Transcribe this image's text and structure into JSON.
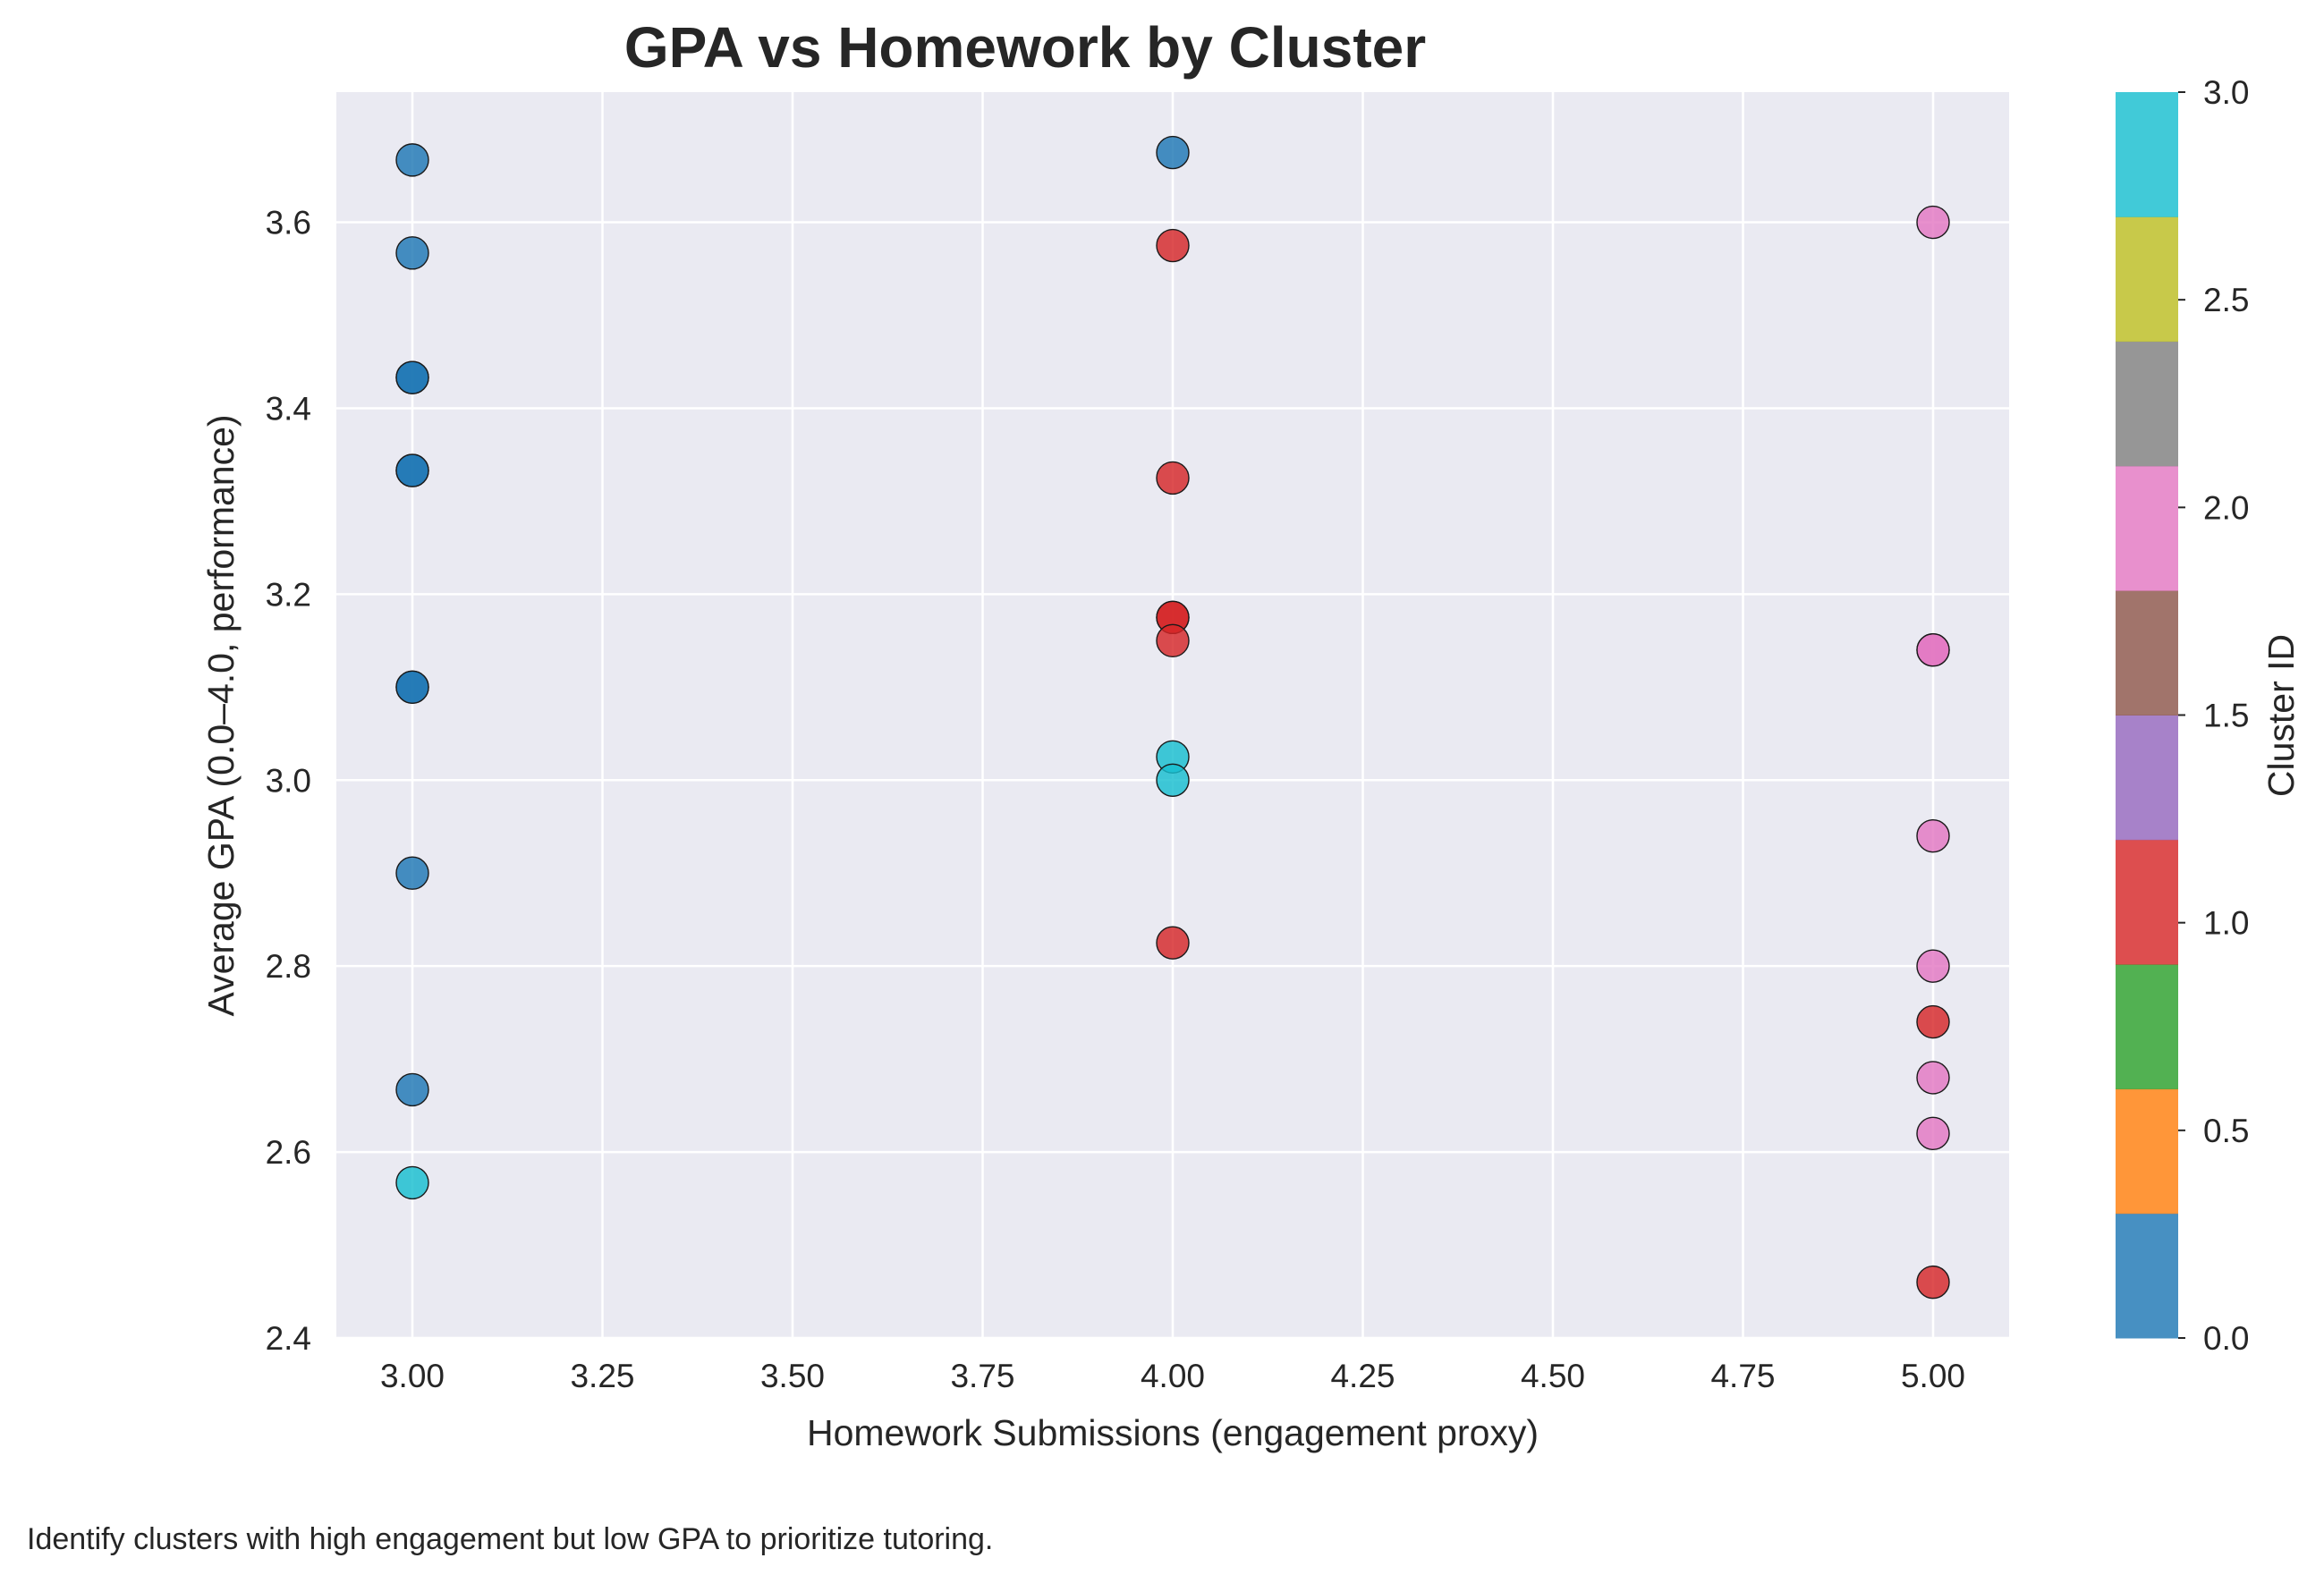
{
  "chart_data": {
    "type": "scatter",
    "title": "GPA vs Homework by Cluster",
    "xlabel": "Homework Submissions (engagement proxy)",
    "ylabel": "Average GPA (0.0–4.0, performance)",
    "xlim": [
      2.9,
      5.1
    ],
    "ylim": [
      2.4,
      3.74
    ],
    "xticks": [
      "3.00",
      "3.25",
      "3.50",
      "3.75",
      "4.00",
      "4.25",
      "4.50",
      "4.75",
      "5.00"
    ],
    "yticks": [
      "2.4",
      "2.6",
      "2.8",
      "3.0",
      "3.2",
      "3.4",
      "3.6"
    ],
    "grid": true,
    "colorbar": {
      "label": "Cluster ID",
      "range": [
        0.0,
        3.0
      ],
      "ticks": [
        "0.0",
        "0.5",
        "1.0",
        "1.5",
        "2.0",
        "2.5",
        "3.0"
      ],
      "colors": [
        "#1f77b4",
        "#ff7f0e",
        "#2ca02c",
        "#d62728",
        "#9467bd",
        "#8c564b",
        "#e377c2",
        "#7f7f7f",
        "#bcbd22",
        "#17becf"
      ]
    },
    "points": [
      {
        "x": 3,
        "y": 3.667,
        "cluster": 0
      },
      {
        "x": 3,
        "y": 3.567,
        "cluster": 0
      },
      {
        "x": 3,
        "y": 3.433,
        "cluster": 0
      },
      {
        "x": 3,
        "y": 3.433,
        "cluster": 0
      },
      {
        "x": 3,
        "y": 3.333,
        "cluster": 0
      },
      {
        "x": 3,
        "y": 3.333,
        "cluster": 0
      },
      {
        "x": 3,
        "y": 3.1,
        "cluster": 0
      },
      {
        "x": 3,
        "y": 3.1,
        "cluster": 0
      },
      {
        "x": 3,
        "y": 2.9,
        "cluster": 0
      },
      {
        "x": 3,
        "y": 2.667,
        "cluster": 0
      },
      {
        "x": 3,
        "y": 2.567,
        "cluster": 3
      },
      {
        "x": 4,
        "y": 3.675,
        "cluster": 0
      },
      {
        "x": 4,
        "y": 3.575,
        "cluster": 1
      },
      {
        "x": 4,
        "y": 3.325,
        "cluster": 1
      },
      {
        "x": 4,
        "y": 3.175,
        "cluster": 1
      },
      {
        "x": 4,
        "y": 3.175,
        "cluster": 1
      },
      {
        "x": 4,
        "y": 3.15,
        "cluster": 1
      },
      {
        "x": 4,
        "y": 3.025,
        "cluster": 3
      },
      {
        "x": 4,
        "y": 3.0,
        "cluster": 3
      },
      {
        "x": 4,
        "y": 2.825,
        "cluster": 1
      },
      {
        "x": 5,
        "y": 3.6,
        "cluster": 2
      },
      {
        "x": 5,
        "y": 3.14,
        "cluster": 2
      },
      {
        "x": 5,
        "y": 3.14,
        "cluster": 2
      },
      {
        "x": 5,
        "y": 2.94,
        "cluster": 2
      },
      {
        "x": 5,
        "y": 2.8,
        "cluster": 2
      },
      {
        "x": 5,
        "y": 2.74,
        "cluster": 1
      },
      {
        "x": 5,
        "y": 2.68,
        "cluster": 2
      },
      {
        "x": 5,
        "y": 2.62,
        "cluster": 2
      },
      {
        "x": 5,
        "y": 2.46,
        "cluster": 1
      }
    ]
  },
  "footnote": "Identify clusters with high engagement but low GPA to prioritize tutoring."
}
